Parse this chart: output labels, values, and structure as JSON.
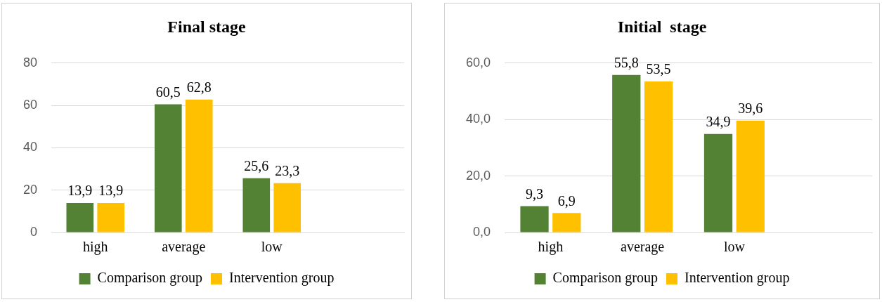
{
  "chart_data": [
    {
      "type": "bar",
      "title": "Final stage",
      "categories": [
        "high",
        "average",
        "low",
        null
      ],
      "series": [
        {
          "name": "Comparison group",
          "color": "#548235",
          "values": [
            13.9,
            60.5,
            25.6,
            null
          ],
          "value_labels": [
            "13,9",
            "60,5",
            "25,6",
            null
          ]
        },
        {
          "name": "Intervention group",
          "color": "#ffc000",
          "values": [
            13.9,
            62.8,
            23.3,
            null
          ],
          "value_labels": [
            "13,9",
            "62,8",
            "23,3",
            null
          ]
        }
      ],
      "ylim": [
        0,
        80
      ],
      "yticks": [
        0,
        20,
        40,
        60,
        80
      ],
      "grid": "y",
      "legend": "bottom"
    },
    {
      "type": "bar",
      "title": "Initial  stage",
      "categories": [
        "high",
        "average",
        "low",
        null
      ],
      "series": [
        {
          "name": "Comparison group",
          "color": "#548235",
          "values": [
            9.3,
            55.8,
            34.9,
            null
          ],
          "value_labels": [
            "9,3",
            "55,8",
            "34,9",
            null
          ]
        },
        {
          "name": "Intervention group",
          "color": "#ffc000",
          "values": [
            6.9,
            53.5,
            39.6,
            null
          ],
          "value_labels": [
            "6,9",
            "53,5",
            "39,6",
            null
          ]
        }
      ],
      "ylim": [
        0,
        60
      ],
      "yticks": [
        {
          "value": 0,
          "label": "0,0"
        },
        {
          "value": 20,
          "label": "20,0"
        },
        {
          "value": 40,
          "label": "40,0"
        },
        {
          "value": 60,
          "label": "60,0"
        }
      ],
      "grid": "y",
      "legend": "bottom"
    }
  ]
}
